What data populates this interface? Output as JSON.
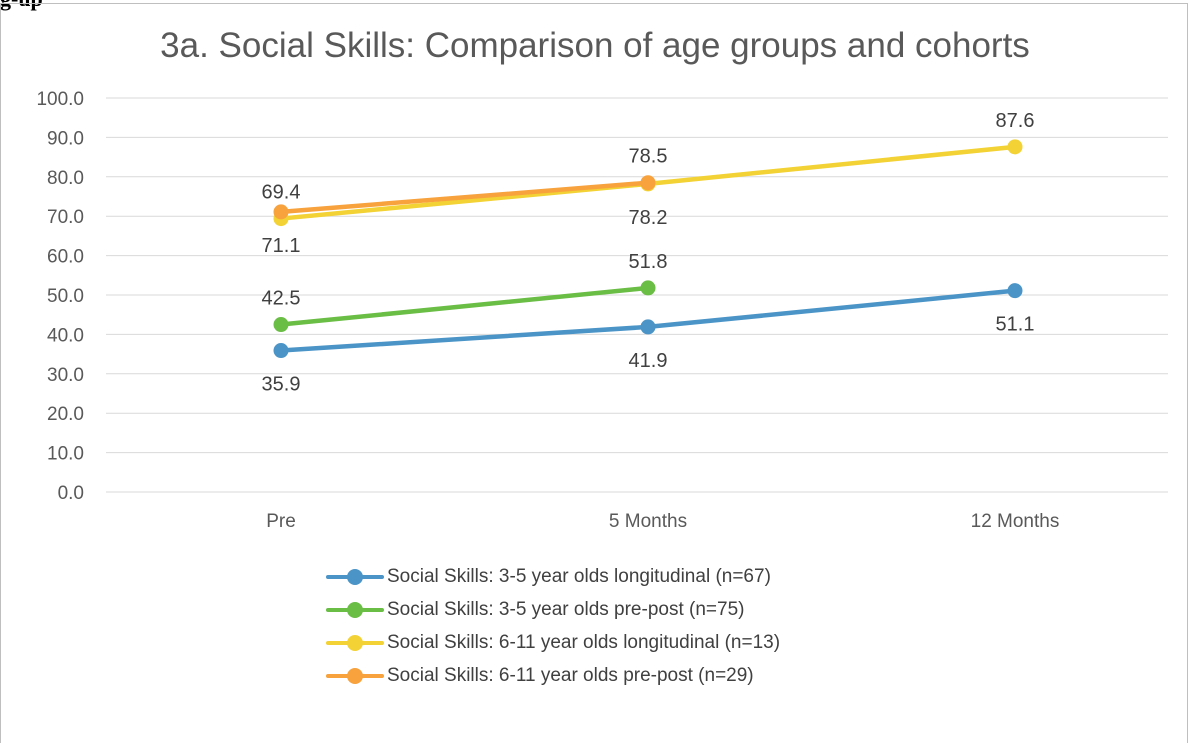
{
  "page_fragment": "g-up",
  "chart_data": {
    "type": "line",
    "title": "3a. Social Skills: Comparison of age groups and cohorts",
    "categories": [
      "Pre",
      "5 Months",
      "12 Months"
    ],
    "ylim": [
      0,
      100
    ],
    "yticks": [
      "0.0",
      "10.0",
      "20.0",
      "30.0",
      "40.0",
      "50.0",
      "60.0",
      "70.0",
      "80.0",
      "90.0",
      "100.0"
    ],
    "grid": true,
    "legend_position": "bottom",
    "series": [
      {
        "name": "Social Skills: 3-5 year olds longitudinal (n=67)",
        "color": "#4a94c7",
        "values": [
          35.9,
          41.9,
          51.1
        ],
        "labels": [
          "35.9",
          "41.9",
          "51.1"
        ],
        "label_pos": [
          "below",
          "below",
          "below"
        ]
      },
      {
        "name": "Social Skills: 3-5 year olds pre-post (n=75)",
        "color": "#6abd45",
        "values": [
          42.5,
          51.8,
          null
        ],
        "labels": [
          "42.5",
          "51.8",
          null
        ],
        "label_pos": [
          "above",
          "above",
          null
        ]
      },
      {
        "name": "Social Skills: 6-11 year olds longitudinal (n=13)",
        "color": "#f2d234",
        "values": [
          69.4,
          78.2,
          87.6
        ],
        "labels": [
          "69.4",
          "78.2",
          "87.6"
        ],
        "label_pos": [
          "above",
          "below",
          "above"
        ]
      },
      {
        "name": "Social Skills: 6-11 year olds pre-post (n=29)",
        "color": "#f7a23c",
        "values": [
          71.1,
          78.5,
          null
        ],
        "labels": [
          "71.1",
          "78.5",
          null
        ],
        "label_pos": [
          "below",
          "above",
          null
        ]
      }
    ]
  }
}
